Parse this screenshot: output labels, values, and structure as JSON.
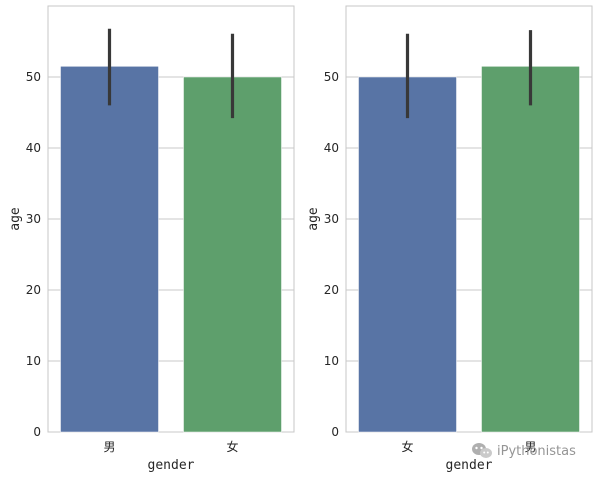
{
  "chart_data": [
    {
      "type": "bar",
      "categories": [
        "男",
        "女"
      ],
      "values": [
        51.5,
        50.0
      ],
      "error_low": [
        46.0,
        44.2
      ],
      "error_high": [
        56.8,
        56.1
      ],
      "colors": [
        "#5874a5",
        "#5e9f6c"
      ],
      "xlabel": "gender",
      "ylabel": "age",
      "ylim": [
        0,
        60
      ],
      "yticks": [
        "0",
        "10",
        "20",
        "30",
        "40",
        "50"
      ],
      "grid": true
    },
    {
      "type": "bar",
      "categories": [
        "女",
        "男"
      ],
      "values": [
        50.0,
        51.5
      ],
      "error_low": [
        44.2,
        46.0
      ],
      "error_high": [
        56.1,
        56.6
      ],
      "colors": [
        "#5874a5",
        "#5e9f6c"
      ],
      "xlabel": "gender",
      "ylabel": "age",
      "ylim": [
        0,
        60
      ],
      "yticks": [
        "0",
        "10",
        "20",
        "30",
        "40",
        "50"
      ],
      "grid": true
    }
  ],
  "watermark": {
    "text": "iPythonistas",
    "icon": "wechat-icon"
  }
}
